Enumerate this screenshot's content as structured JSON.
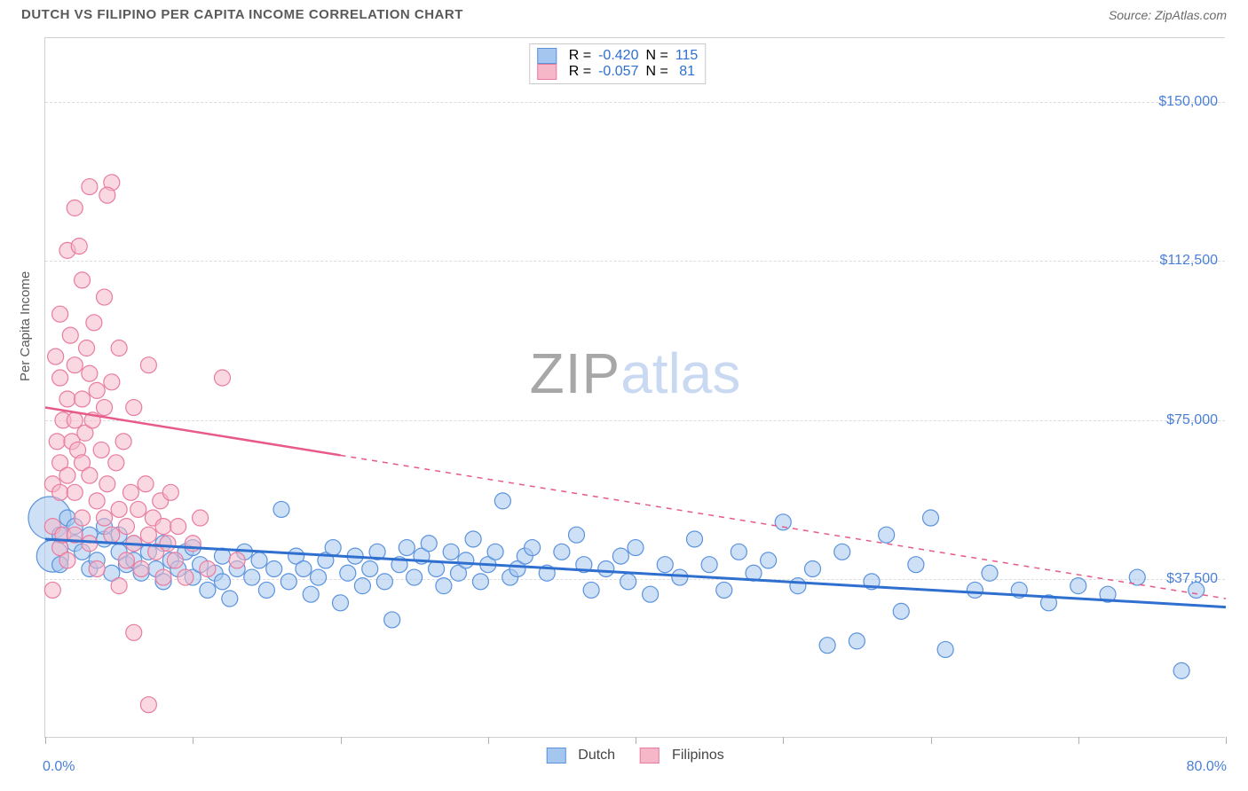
{
  "header": {
    "title": "DUTCH VS FILIPINO PER CAPITA INCOME CORRELATION CHART",
    "source": "Source: ZipAtlas.com"
  },
  "watermark": {
    "part1": "ZIP",
    "part2": "atlas"
  },
  "chart": {
    "type": "scatter",
    "y_axis_title": "Per Capita Income",
    "xlim": [
      0,
      80
    ],
    "ylim": [
      0,
      165000
    ],
    "x_min_label": "0.0%",
    "x_max_label": "80.0%",
    "xtick_positions_pct": [
      0,
      12.5,
      25,
      37.5,
      50,
      62.5,
      75,
      87.5,
      100
    ],
    "y_gridlines": [
      {
        "value": 37500,
        "label": "$37,500"
      },
      {
        "value": 75000,
        "label": "$75,000"
      },
      {
        "value": 112500,
        "label": "$112,500"
      },
      {
        "value": 150000,
        "label": "$150,000"
      }
    ],
    "background_color": "#ffffff",
    "grid_color": "#dcdcdc",
    "axis_color": "#d0d0d0",
    "label_color": "#4a7fd6",
    "series": [
      {
        "name": "Dutch",
        "point_fill": "#a5c6ef",
        "point_stroke": "#5b93dd",
        "point_opacity": 0.55,
        "default_radius": 9,
        "line_color": "#2f6fd0",
        "line_width": 3,
        "trend": {
          "x1": 0,
          "y1": 47000,
          "x2": 80,
          "y2": 31000,
          "dash_after_x": 80
        },
        "points": [
          {
            "x": 0.3,
            "y": 52000,
            "r": 24
          },
          {
            "x": 0.5,
            "y": 43000,
            "r": 18
          },
          {
            "x": 1,
            "y": 48000
          },
          {
            "x": 1,
            "y": 41000
          },
          {
            "x": 1.5,
            "y": 52000
          },
          {
            "x": 2,
            "y": 46000
          },
          {
            "x": 2,
            "y": 50000
          },
          {
            "x": 2.5,
            "y": 44000
          },
          {
            "x": 3,
            "y": 48000
          },
          {
            "x": 3,
            "y": 40000
          },
          {
            "x": 3.5,
            "y": 42000
          },
          {
            "x": 4,
            "y": 47000
          },
          {
            "x": 4,
            "y": 50000
          },
          {
            "x": 4.5,
            "y": 39000
          },
          {
            "x": 5,
            "y": 44000
          },
          {
            "x": 5,
            "y": 48000
          },
          {
            "x": 5.5,
            "y": 41000
          },
          {
            "x": 6,
            "y": 46000
          },
          {
            "x": 6,
            "y": 42000
          },
          {
            "x": 6.5,
            "y": 39000
          },
          {
            "x": 7,
            "y": 44000
          },
          {
            "x": 7.5,
            "y": 40000
          },
          {
            "x": 8,
            "y": 46000
          },
          {
            "x": 8,
            "y": 37000
          },
          {
            "x": 8.5,
            "y": 42000
          },
          {
            "x": 9,
            "y": 40000
          },
          {
            "x": 9.5,
            "y": 44000
          },
          {
            "x": 10,
            "y": 38000
          },
          {
            "x": 10,
            "y": 45000
          },
          {
            "x": 10.5,
            "y": 41000
          },
          {
            "x": 11,
            "y": 35000
          },
          {
            "x": 11.5,
            "y": 39000
          },
          {
            "x": 12,
            "y": 43000
          },
          {
            "x": 12,
            "y": 37000
          },
          {
            "x": 12.5,
            "y": 33000
          },
          {
            "x": 13,
            "y": 40000
          },
          {
            "x": 13.5,
            "y": 44000
          },
          {
            "x": 14,
            "y": 38000
          },
          {
            "x": 14.5,
            "y": 42000
          },
          {
            "x": 15,
            "y": 35000
          },
          {
            "x": 15.5,
            "y": 40000
          },
          {
            "x": 16,
            "y": 54000
          },
          {
            "x": 16.5,
            "y": 37000
          },
          {
            "x": 17,
            "y": 43000
          },
          {
            "x": 17.5,
            "y": 40000
          },
          {
            "x": 18,
            "y": 34000
          },
          {
            "x": 18.5,
            "y": 38000
          },
          {
            "x": 19,
            "y": 42000
          },
          {
            "x": 19.5,
            "y": 45000
          },
          {
            "x": 20,
            "y": 32000
          },
          {
            "x": 20.5,
            "y": 39000
          },
          {
            "x": 21,
            "y": 43000
          },
          {
            "x": 21.5,
            "y": 36000
          },
          {
            "x": 22,
            "y": 40000
          },
          {
            "x": 22.5,
            "y": 44000
          },
          {
            "x": 23,
            "y": 37000
          },
          {
            "x": 23.5,
            "y": 28000
          },
          {
            "x": 24,
            "y": 41000
          },
          {
            "x": 24.5,
            "y": 45000
          },
          {
            "x": 25,
            "y": 38000
          },
          {
            "x": 25.5,
            "y": 43000
          },
          {
            "x": 26,
            "y": 46000
          },
          {
            "x": 26.5,
            "y": 40000
          },
          {
            "x": 27,
            "y": 36000
          },
          {
            "x": 27.5,
            "y": 44000
          },
          {
            "x": 28,
            "y": 39000
          },
          {
            "x": 28.5,
            "y": 42000
          },
          {
            "x": 29,
            "y": 47000
          },
          {
            "x": 29.5,
            "y": 37000
          },
          {
            "x": 30,
            "y": 41000
          },
          {
            "x": 30.5,
            "y": 44000
          },
          {
            "x": 31,
            "y": 56000
          },
          {
            "x": 31.5,
            "y": 38000
          },
          {
            "x": 32,
            "y": 40000
          },
          {
            "x": 32.5,
            "y": 43000
          },
          {
            "x": 33,
            "y": 45000
          },
          {
            "x": 34,
            "y": 39000
          },
          {
            "x": 35,
            "y": 44000
          },
          {
            "x": 36,
            "y": 48000
          },
          {
            "x": 36.5,
            "y": 41000
          },
          {
            "x": 37,
            "y": 35000
          },
          {
            "x": 38,
            "y": 40000
          },
          {
            "x": 39,
            "y": 43000
          },
          {
            "x": 39.5,
            "y": 37000
          },
          {
            "x": 40,
            "y": 45000
          },
          {
            "x": 41,
            "y": 34000
          },
          {
            "x": 42,
            "y": 41000
          },
          {
            "x": 43,
            "y": 38000
          },
          {
            "x": 44,
            "y": 47000
          },
          {
            "x": 45,
            "y": 41000
          },
          {
            "x": 46,
            "y": 35000
          },
          {
            "x": 47,
            "y": 44000
          },
          {
            "x": 48,
            "y": 39000
          },
          {
            "x": 49,
            "y": 42000
          },
          {
            "x": 50,
            "y": 51000
          },
          {
            "x": 51,
            "y": 36000
          },
          {
            "x": 52,
            "y": 40000
          },
          {
            "x": 53,
            "y": 22000
          },
          {
            "x": 54,
            "y": 44000
          },
          {
            "x": 55,
            "y": 23000
          },
          {
            "x": 56,
            "y": 37000
          },
          {
            "x": 57,
            "y": 48000
          },
          {
            "x": 58,
            "y": 30000
          },
          {
            "x": 59,
            "y": 41000
          },
          {
            "x": 60,
            "y": 52000
          },
          {
            "x": 61,
            "y": 21000
          },
          {
            "x": 63,
            "y": 35000
          },
          {
            "x": 64,
            "y": 39000
          },
          {
            "x": 66,
            "y": 35000
          },
          {
            "x": 68,
            "y": 32000
          },
          {
            "x": 70,
            "y": 36000
          },
          {
            "x": 72,
            "y": 34000
          },
          {
            "x": 74,
            "y": 38000
          },
          {
            "x": 77,
            "y": 16000
          },
          {
            "x": 78,
            "y": 35000
          }
        ]
      },
      {
        "name": "Filipinos",
        "point_fill": "#f6b8c9",
        "point_stroke": "#e87ca0",
        "point_opacity": 0.55,
        "default_radius": 9,
        "line_color": "#e75a8a",
        "line_width": 2.5,
        "trend": {
          "x1": 0,
          "y1": 78000,
          "x2": 80,
          "y2": 33000,
          "dash_after_x": 20
        },
        "points": [
          {
            "x": 0.5,
            "y": 60000
          },
          {
            "x": 0.5,
            "y": 50000
          },
          {
            "x": 0.5,
            "y": 35000
          },
          {
            "x": 0.7,
            "y": 90000
          },
          {
            "x": 0.8,
            "y": 70000
          },
          {
            "x": 1,
            "y": 100000
          },
          {
            "x": 1,
            "y": 85000
          },
          {
            "x": 1,
            "y": 65000
          },
          {
            "x": 1,
            "y": 58000
          },
          {
            "x": 1,
            "y": 45000
          },
          {
            "x": 1.2,
            "y": 75000
          },
          {
            "x": 1.2,
            "y": 48000
          },
          {
            "x": 1.5,
            "y": 115000
          },
          {
            "x": 1.5,
            "y": 80000
          },
          {
            "x": 1.5,
            "y": 62000
          },
          {
            "x": 1.5,
            "y": 42000
          },
          {
            "x": 1.7,
            "y": 95000
          },
          {
            "x": 1.8,
            "y": 70000
          },
          {
            "x": 2,
            "y": 125000
          },
          {
            "x": 2,
            "y": 88000
          },
          {
            "x": 2,
            "y": 75000
          },
          {
            "x": 2,
            "y": 58000
          },
          {
            "x": 2,
            "y": 48000
          },
          {
            "x": 2.2,
            "y": 68000
          },
          {
            "x": 2.3,
            "y": 116000
          },
          {
            "x": 2.5,
            "y": 108000
          },
          {
            "x": 2.5,
            "y": 80000
          },
          {
            "x": 2.5,
            "y": 65000
          },
          {
            "x": 2.5,
            "y": 52000
          },
          {
            "x": 2.7,
            "y": 72000
          },
          {
            "x": 2.8,
            "y": 92000
          },
          {
            "x": 3,
            "y": 130000
          },
          {
            "x": 3,
            "y": 86000
          },
          {
            "x": 3,
            "y": 62000
          },
          {
            "x": 3,
            "y": 46000
          },
          {
            "x": 3.2,
            "y": 75000
          },
          {
            "x": 3.3,
            "y": 98000
          },
          {
            "x": 3.5,
            "y": 82000
          },
          {
            "x": 3.5,
            "y": 56000
          },
          {
            "x": 3.5,
            "y": 40000
          },
          {
            "x": 3.8,
            "y": 68000
          },
          {
            "x": 4,
            "y": 104000
          },
          {
            "x": 4,
            "y": 78000
          },
          {
            "x": 4,
            "y": 52000
          },
          {
            "x": 4.2,
            "y": 60000
          },
          {
            "x": 4.5,
            "y": 131000
          },
          {
            "x": 4.5,
            "y": 84000
          },
          {
            "x": 4.5,
            "y": 48000
          },
          {
            "x": 4.8,
            "y": 65000
          },
          {
            "x": 5,
            "y": 92000
          },
          {
            "x": 5,
            "y": 54000
          },
          {
            "x": 5,
            "y": 36000
          },
          {
            "x": 5.3,
            "y": 70000
          },
          {
            "x": 5.5,
            "y": 50000
          },
          {
            "x": 5.5,
            "y": 42000
          },
          {
            "x": 5.8,
            "y": 58000
          },
          {
            "x": 6,
            "y": 78000
          },
          {
            "x": 6,
            "y": 46000
          },
          {
            "x": 6,
            "y": 25000
          },
          {
            "x": 6.3,
            "y": 54000
          },
          {
            "x": 6.5,
            "y": 40000
          },
          {
            "x": 6.8,
            "y": 60000
          },
          {
            "x": 7,
            "y": 88000
          },
          {
            "x": 7,
            "y": 48000
          },
          {
            "x": 7.3,
            "y": 52000
          },
          {
            "x": 7.5,
            "y": 44000
          },
          {
            "x": 7.8,
            "y": 56000
          },
          {
            "x": 8,
            "y": 50000
          },
          {
            "x": 8,
            "y": 38000
          },
          {
            "x": 8.3,
            "y": 46000
          },
          {
            "x": 8.5,
            "y": 58000
          },
          {
            "x": 8.8,
            "y": 42000
          },
          {
            "x": 9,
            "y": 50000
          },
          {
            "x": 9.5,
            "y": 38000
          },
          {
            "x": 10,
            "y": 46000
          },
          {
            "x": 10.5,
            "y": 52000
          },
          {
            "x": 11,
            "y": 40000
          },
          {
            "x": 12,
            "y": 85000
          },
          {
            "x": 13,
            "y": 42000
          },
          {
            "x": 7,
            "y": 8000
          },
          {
            "x": 4.2,
            "y": 128000
          }
        ]
      }
    ],
    "legend_bottom": [
      {
        "label": "Dutch",
        "fill": "#a5c6ef",
        "stroke": "#5b93dd"
      },
      {
        "label": "Filipinos",
        "fill": "#f6b8c9",
        "stroke": "#e87ca0"
      }
    ],
    "stats_box": {
      "rows": [
        {
          "swatch_fill": "#a5c6ef",
          "swatch_stroke": "#5b93dd",
          "r_label": "R =",
          "r_value": "-0.420",
          "n_label": "N =",
          "n_value": "115"
        },
        {
          "swatch_fill": "#f6b8c9",
          "swatch_stroke": "#e87ca0",
          "r_label": "R =",
          "r_value": "-0.057",
          "n_label": "N =",
          "n_value": " 81"
        }
      ]
    }
  }
}
